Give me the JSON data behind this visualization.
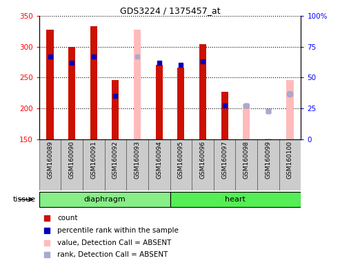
{
  "title": "GDS3224 / 1375457_at",
  "samples": [
    "GSM160089",
    "GSM160090",
    "GSM160091",
    "GSM160092",
    "GSM160093",
    "GSM160094",
    "GSM160095",
    "GSM160096",
    "GSM160097",
    "GSM160098",
    "GSM160099",
    "GSM160100"
  ],
  "ylim_left": [
    150,
    350
  ],
  "ylim_right": [
    0,
    100
  ],
  "yticks_left": [
    150,
    200,
    250,
    300,
    350
  ],
  "yticks_right": [
    0,
    25,
    50,
    75,
    100
  ],
  "count_values": [
    328,
    300,
    333,
    246,
    null,
    270,
    266,
    304,
    227,
    null,
    null,
    null
  ],
  "rank_pct_values": [
    67,
    62,
    67,
    35,
    null,
    62,
    60,
    63,
    27,
    27,
    23,
    37
  ],
  "absent_value_bars": [
    null,
    null,
    null,
    null,
    328,
    null,
    null,
    null,
    null,
    207,
    151,
    246
  ],
  "absent_rank_pct": [
    null,
    null,
    null,
    null,
    67,
    null,
    null,
    null,
    null,
    27,
    23,
    37
  ],
  "count_color": "#cc1100",
  "rank_color": "#0000bb",
  "absent_bar_color": "#ffbbbb",
  "absent_rank_color": "#aaaacc",
  "bar_width": 0.32,
  "grid_linestyle": "dotted",
  "legend_items": [
    {
      "label": "count",
      "color": "#cc1100"
    },
    {
      "label": "percentile rank within the sample",
      "color": "#0000bb"
    },
    {
      "label": "value, Detection Call = ABSENT",
      "color": "#ffbbbb"
    },
    {
      "label": "rank, Detection Call = ABSENT",
      "color": "#aaaacc"
    }
  ],
  "tissue_label": "tissue",
  "diaphragm_samples": 6,
  "heart_samples": 6,
  "xticklabel_fontsize": 6.5,
  "yticklabel_fontsize": 7.5,
  "title_fontsize": 9
}
